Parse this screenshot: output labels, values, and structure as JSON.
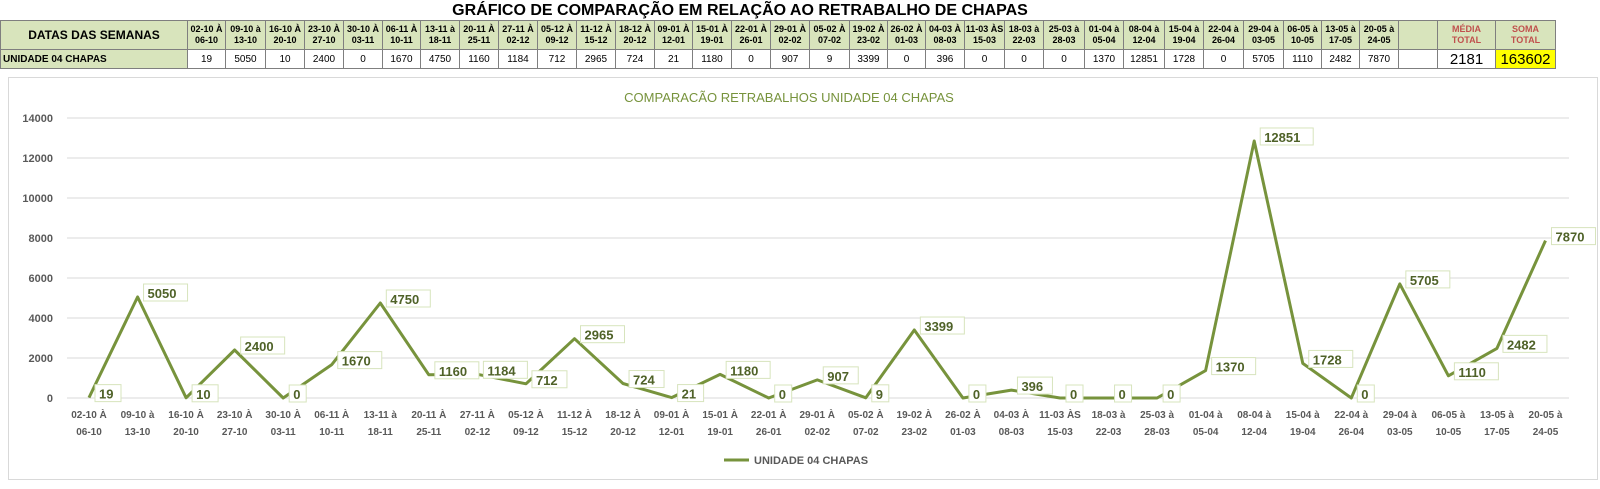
{
  "sheet": {
    "title": "GRÁFICO DE COMPARAÇÃO EM RELAÇÃO AO RETRABALHO DE CHAPAS",
    "header_label": "DATAS DAS SEMANAS",
    "row_label": "UNIDADE 04 CHAPAS",
    "media_label_1": "MÉDIA",
    "media_label_2": "TOTAL",
    "soma_label_1": "SOMA",
    "soma_label_2": "TOTAL",
    "media_value": "2181",
    "soma_value": "163602",
    "weeks": [
      {
        "top": "02-10 À",
        "bottom": "06-10",
        "value": "19"
      },
      {
        "top": "09-10 à",
        "bottom": "13-10",
        "value": "5050"
      },
      {
        "top": "16-10 À",
        "bottom": "20-10",
        "value": "10"
      },
      {
        "top": "23-10 À",
        "bottom": "27-10",
        "value": "2400"
      },
      {
        "top": "30-10 À",
        "bottom": "03-11",
        "value": "0"
      },
      {
        "top": "06-11 À",
        "bottom": "10-11",
        "value": "1670"
      },
      {
        "top": "13-11 à",
        "bottom": "18-11",
        "value": "4750"
      },
      {
        "top": "20-11 À",
        "bottom": "25-11",
        "value": "1160"
      },
      {
        "top": "27-11 À",
        "bottom": "02-12",
        "value": "1184"
      },
      {
        "top": "05-12 À",
        "bottom": "09-12",
        "value": "712"
      },
      {
        "top": "11-12 À",
        "bottom": "15-12",
        "value": "2965"
      },
      {
        "top": "18-12 À",
        "bottom": "20-12",
        "value": "724"
      },
      {
        "top": "09-01 À",
        "bottom": "12-01",
        "value": "21"
      },
      {
        "top": "15-01 À",
        "bottom": "19-01",
        "value": "1180"
      },
      {
        "top": "22-01 À",
        "bottom": "26-01",
        "value": "0"
      },
      {
        "top": "29-01 À",
        "bottom": "02-02",
        "value": "907"
      },
      {
        "top": "05-02 À",
        "bottom": "07-02",
        "value": "9"
      },
      {
        "top": "19-02 À",
        "bottom": "23-02",
        "value": "3399"
      },
      {
        "top": "26-02 À",
        "bottom": "01-03",
        "value": "0"
      },
      {
        "top": "04-03 À",
        "bottom": "08-03",
        "value": "396"
      },
      {
        "top": "11-03 ÀS",
        "bottom": "15-03",
        "value": "0"
      },
      {
        "top": "18-03 à",
        "bottom": "22-03",
        "value": "0"
      },
      {
        "top": "25-03 à",
        "bottom": "28-03",
        "value": "0"
      },
      {
        "top": "01-04 à",
        "bottom": "05-04",
        "value": "1370"
      },
      {
        "top": "08-04 à",
        "bottom": "12-04",
        "value": "12851"
      },
      {
        "top": "15-04 à",
        "bottom": "19-04",
        "value": "1728"
      },
      {
        "top": "22-04 à",
        "bottom": "26-04",
        "value": "0"
      },
      {
        "top": "29-04 à",
        "bottom": "03-05",
        "value": "5705"
      },
      {
        "top": "06-05 à",
        "bottom": "10-05",
        "value": "1110"
      },
      {
        "top": "13-05 à",
        "bottom": "17-05",
        "value": "2482"
      },
      {
        "top": "20-05 à",
        "bottom": "24-05",
        "value": "7870"
      }
    ]
  },
  "chart_data": {
    "type": "line",
    "title": "COMPARACÃO RETRABALHOS UNIDADE 04 CHAPAS",
    "ylim": [
      0,
      14000
    ],
    "yticks": [
      "0",
      "2000",
      "4000",
      "6000",
      "8000",
      "10000",
      "12000",
      "14000"
    ],
    "grid": true,
    "legend": "bottom",
    "line_color": "#77933c",
    "label_color": "#4f6228",
    "categories": [
      [
        "02-10 À",
        "06-10"
      ],
      [
        "09-10 à",
        "13-10"
      ],
      [
        "16-10 À",
        "20-10"
      ],
      [
        "23-10 À",
        "27-10"
      ],
      [
        "30-10 À",
        "03-11"
      ],
      [
        "06-11 À",
        "10-11"
      ],
      [
        "13-11 à",
        "18-11"
      ],
      [
        "20-11 À",
        "25-11"
      ],
      [
        "27-11 À",
        "02-12"
      ],
      [
        "05-12 À",
        "09-12"
      ],
      [
        "11-12 À",
        "15-12"
      ],
      [
        "18-12 À",
        "20-12"
      ],
      [
        "09-01 À",
        "12-01"
      ],
      [
        "15-01 À",
        "19-01"
      ],
      [
        "22-01 À",
        "26-01"
      ],
      [
        "29-01 À",
        "02-02"
      ],
      [
        "05-02 À",
        "07-02"
      ],
      [
        "19-02 À",
        "23-02"
      ],
      [
        "26-02 À",
        "01-03"
      ],
      [
        "04-03 À",
        "08-03"
      ],
      [
        "11-03 ÀS",
        "15-03"
      ],
      [
        "18-03 à",
        "22-03"
      ],
      [
        "25-03 à",
        "28-03"
      ],
      [
        "01-04 à",
        "05-04"
      ],
      [
        "08-04 à",
        "12-04"
      ],
      [
        "15-04 à",
        "19-04"
      ],
      [
        "22-04 à",
        "26-04"
      ],
      [
        "29-04 à",
        "03-05"
      ],
      [
        "06-05 à",
        "10-05"
      ],
      [
        "13-05 à",
        "17-05"
      ],
      [
        "20-05 à",
        "24-05"
      ]
    ],
    "series": [
      {
        "name": "UNIDADE 04 CHAPAS",
        "values": [
          19,
          5050,
          10,
          2400,
          0,
          1670,
          4750,
          1160,
          1184,
          712,
          2965,
          724,
          21,
          1180,
          0,
          907,
          9,
          3399,
          0,
          396,
          0,
          0,
          0,
          1370,
          12851,
          1728,
          0,
          5705,
          1110,
          2482,
          7870
        ]
      }
    ]
  }
}
